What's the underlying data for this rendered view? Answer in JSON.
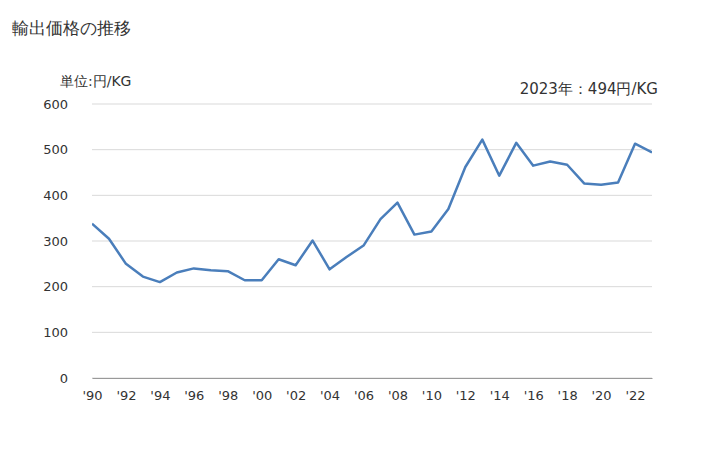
{
  "chart_data": {
    "type": "line",
    "title": "輸出価格の推移",
    "y_label": "単位:円/KG",
    "annotation": "2023年：494円/KG",
    "x": [
      1990,
      1991,
      1992,
      1993,
      1994,
      1995,
      1996,
      1997,
      1998,
      1999,
      2000,
      2001,
      2002,
      2003,
      2004,
      2005,
      2006,
      2007,
      2008,
      2009,
      2010,
      2011,
      2012,
      2013,
      2014,
      2015,
      2016,
      2017,
      2018,
      2019,
      2020,
      2021,
      2022,
      2023
    ],
    "values": [
      338,
      305,
      250,
      222,
      210,
      231,
      240,
      236,
      234,
      214,
      214,
      260,
      247,
      301,
      238,
      265,
      290,
      348,
      384,
      314,
      321,
      370,
      462,
      522,
      443,
      515,
      465,
      474,
      467,
      426,
      423,
      428,
      513,
      494
    ],
    "color": "#4a7ebb",
    "xlim": [
      1990,
      2023
    ],
    "xticks": [
      {
        "value": 1990,
        "label": "'90"
      },
      {
        "value": 1992,
        "label": "'92"
      },
      {
        "value": 1994,
        "label": "'94"
      },
      {
        "value": 1996,
        "label": "'96"
      },
      {
        "value": 1998,
        "label": "'98"
      },
      {
        "value": 2000,
        "label": "'00"
      },
      {
        "value": 2002,
        "label": "'02"
      },
      {
        "value": 2004,
        "label": "'04"
      },
      {
        "value": 2006,
        "label": "'06"
      },
      {
        "value": 2008,
        "label": "'08"
      },
      {
        "value": 2010,
        "label": "'10"
      },
      {
        "value": 2012,
        "label": "'12"
      },
      {
        "value": 2014,
        "label": "'14"
      },
      {
        "value": 2016,
        "label": "'16"
      },
      {
        "value": 2018,
        "label": "'18"
      },
      {
        "value": 2020,
        "label": "'20"
      },
      {
        "value": 2022,
        "label": "'22"
      }
    ],
    "ylim": [
      0,
      600
    ],
    "yticks": [
      0,
      100,
      200,
      300,
      400,
      500,
      600
    ],
    "grid": true
  }
}
